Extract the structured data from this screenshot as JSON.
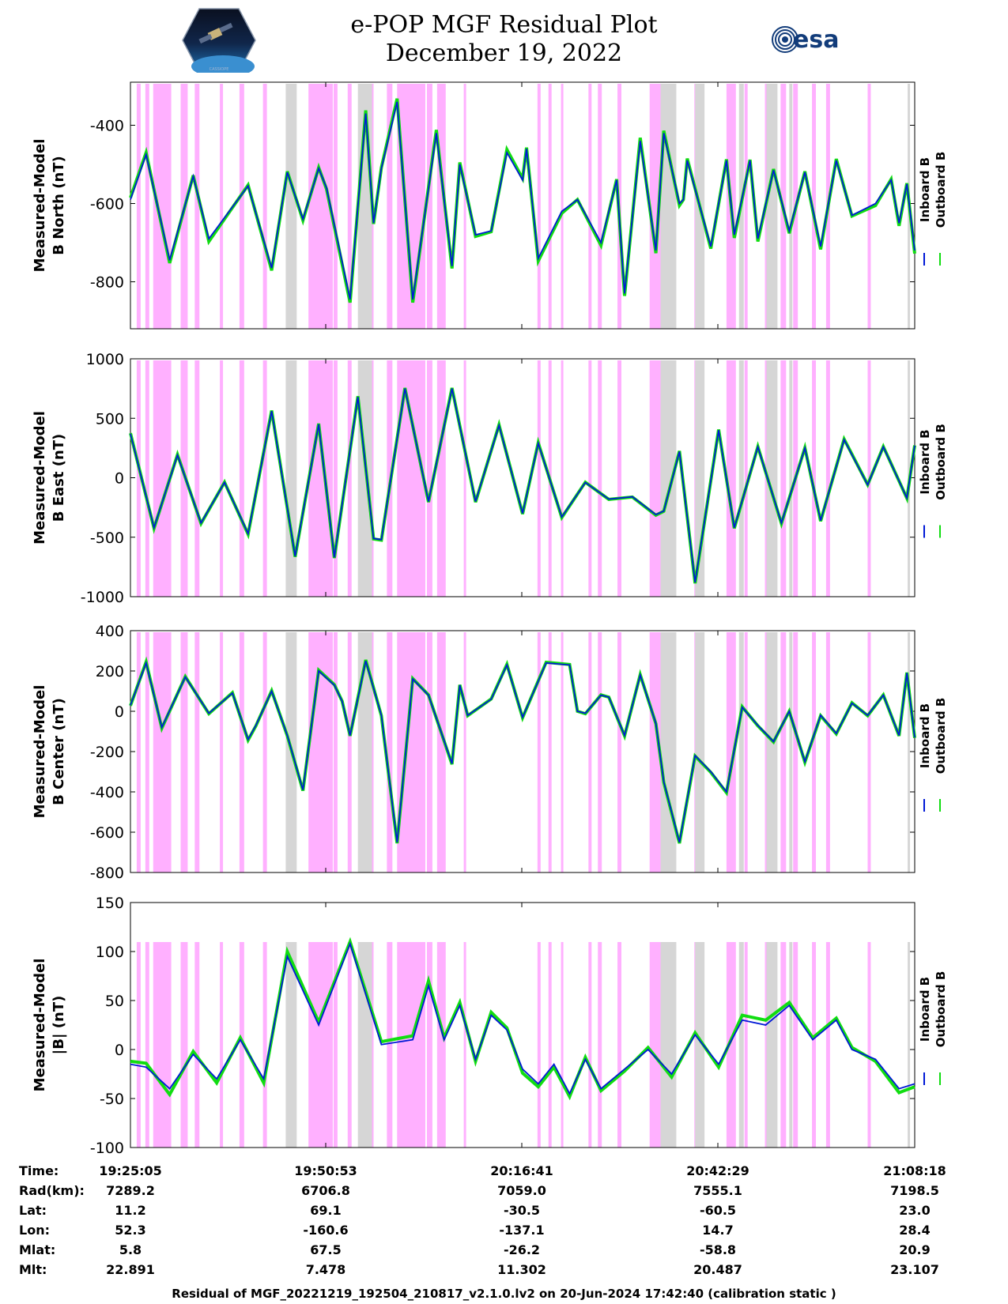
{
  "header": {
    "title_line1": "e-POP MGF Residual Plot",
    "title_line2": "December 19, 2022",
    "left_logo_caption": "CASSIOPE",
    "right_logo_text": "esa"
  },
  "colors": {
    "inboard": "#0018d6",
    "outboard": "#11dd11",
    "pink_band": "#ffb0ff",
    "gray_band": "#d6d6d6"
  },
  "chart_data": [
    {
      "type": "line",
      "ylabel_line1": "Measured-Model",
      "ylabel_line2": "B North (nT)",
      "ylim": [
        -920,
        -290
      ],
      "yticks": [
        -400,
        -600,
        -800
      ],
      "ytick_labels": [
        "-400",
        "-600",
        "-800"
      ],
      "legend": [
        "Inboard B",
        "Outboard B"
      ],
      "series": [
        {
          "name": "Inboard B",
          "x": [
            0,
            2,
            5,
            8,
            10,
            15,
            18,
            20,
            22,
            24,
            25,
            28,
            30,
            31,
            32,
            34,
            36,
            39,
            41,
            42,
            44,
            46,
            48,
            50,
            50.5,
            52,
            55,
            57,
            60,
            62,
            63,
            65,
            67,
            68,
            70,
            70.5,
            71,
            74,
            76,
            77,
            79,
            80,
            82,
            84,
            86,
            88,
            90,
            92,
            95,
            97,
            98,
            99,
            100
          ],
          "values": [
            -590,
            -475,
            -745,
            -530,
            -690,
            -555,
            -765,
            -520,
            -640,
            -510,
            -560,
            -845,
            -370,
            -650,
            -510,
            -340,
            -845,
            -420,
            -760,
            -500,
            -680,
            -670,
            -470,
            -540,
            -460,
            -740,
            -620,
            -590,
            -700,
            -540,
            -830,
            -440,
            -720,
            -420,
            -600,
            -590,
            -490,
            -710,
            -490,
            -680,
            -490,
            -690,
            -515,
            -670,
            -520,
            -710,
            -490,
            -630,
            -600,
            -540,
            -650,
            -550,
            -720
          ]
        },
        {
          "name": "Outboard B",
          "x": [
            0,
            2,
            5,
            8,
            10,
            15,
            18,
            20,
            22,
            24,
            25,
            28,
            30,
            31,
            32,
            34,
            36,
            39,
            41,
            42,
            44,
            46,
            48,
            50,
            50.5,
            52,
            55,
            57,
            60,
            62,
            63,
            65,
            67,
            68,
            70,
            70.5,
            71,
            74,
            76,
            77,
            79,
            80,
            82,
            84,
            86,
            88,
            90,
            92,
            95,
            97,
            98,
            99,
            100
          ],
          "values": [
            -585,
            -470,
            -752,
            -528,
            -697,
            -553,
            -771,
            -518,
            -643,
            -508,
            -563,
            -853,
            -362,
            -652,
            -508,
            -332,
            -853,
            -412,
            -766,
            -495,
            -684,
            -672,
            -462,
            -536,
            -457,
            -747,
            -625,
            -590,
            -707,
            -538,
            -836,
            -432,
            -727,
            -414,
            -605,
            -590,
            -485,
            -715,
            -487,
            -688,
            -488,
            -697,
            -512,
            -676,
            -518,
            -717,
            -486,
            -632,
            -605,
            -538,
            -657,
            -548,
            -728
          ]
        }
      ]
    },
    {
      "type": "line",
      "ylabel_line1": "Measured-Model",
      "ylabel_line2": "B East (nT)",
      "ylim": [
        -1000,
        1000
      ],
      "yticks": [
        1000,
        500,
        0,
        -500,
        -1000
      ],
      "ytick_labels": [
        "1000",
        "500",
        "0",
        "-500",
        "-1000"
      ],
      "legend": [
        "Inboard B",
        "Outboard B"
      ],
      "series": [
        {
          "name": "Inboard B",
          "x": [
            0,
            3,
            6,
            9,
            12,
            15,
            18,
            21,
            24,
            26,
            29,
            31,
            32,
            35,
            38,
            41,
            44,
            47,
            50,
            52,
            55,
            58,
            61,
            64,
            67,
            68,
            70,
            72,
            75,
            77,
            80,
            83,
            86,
            88,
            91,
            94,
            96,
            99,
            100
          ],
          "values": [
            370,
            -420,
            190,
            -380,
            -40,
            -470,
            560,
            -660,
            450,
            -670,
            680,
            -510,
            -520,
            750,
            -200,
            750,
            -200,
            440,
            -300,
            290,
            -330,
            -40,
            -180,
            -160,
            -310,
            -280,
            220,
            -880,
            400,
            -420,
            260,
            -380,
            250,
            -360,
            320,
            -60,
            260,
            -170,
            270
          ]
        },
        {
          "name": "Outboard B",
          "x": [
            0,
            3,
            6,
            9,
            12,
            15,
            18,
            21,
            24,
            26,
            29,
            31,
            32,
            35,
            38,
            41,
            44,
            47,
            50,
            52,
            55,
            58,
            61,
            64,
            67,
            68,
            70,
            72,
            75,
            77,
            80,
            83,
            86,
            88,
            91,
            94,
            96,
            99,
            100
          ],
          "values": [
            375,
            -425,
            195,
            -385,
            -38,
            -475,
            565,
            -665,
            455,
            -675,
            685,
            -515,
            -525,
            755,
            -205,
            755,
            -205,
            445,
            -305,
            295,
            -335,
            -38,
            -182,
            -162,
            -315,
            -282,
            225,
            -888,
            405,
            -425,
            262,
            -385,
            252,
            -365,
            325,
            -58,
            262,
            -172,
            272
          ]
        }
      ]
    },
    {
      "type": "line",
      "ylabel_line1": "Measured-Model",
      "ylabel_line2": "B Center (nT)",
      "ylim": [
        -800,
        400
      ],
      "yticks": [
        400,
        200,
        0,
        -200,
        -400,
        -600,
        -800
      ],
      "ytick_labels": [
        "400",
        "200",
        "0",
        "-200",
        "-400",
        "-600",
        "-800"
      ],
      "legend": [
        "Inboard B",
        "Outboard B"
      ],
      "series": [
        {
          "name": "Inboard B",
          "x": [
            0,
            2,
            4,
            7,
            10,
            13,
            15,
            16,
            18,
            20,
            22,
            24,
            26,
            27,
            28,
            30,
            32,
            34,
            36,
            38,
            41,
            42,
            43,
            46,
            48,
            50,
            53,
            56,
            57,
            58,
            60,
            61,
            63,
            65,
            67,
            68,
            70,
            72,
            74,
            76,
            78,
            80,
            82,
            84,
            86,
            88,
            90,
            92,
            94,
            96,
            98,
            99,
            100
          ],
          "values": [
            30,
            240,
            -80,
            170,
            -10,
            90,
            -140,
            -70,
            100,
            -120,
            -390,
            200,
            130,
            50,
            -120,
            250,
            -20,
            -650,
            160,
            80,
            -260,
            130,
            -20,
            60,
            230,
            -30,
            240,
            230,
            0,
            -10,
            80,
            70,
            -120,
            180,
            -60,
            -350,
            -650,
            -220,
            -300,
            -400,
            20,
            -70,
            -150,
            0,
            -250,
            -20,
            -110,
            40,
            -20,
            80,
            -120,
            190,
            -130
          ]
        },
        {
          "name": "Outboard B",
          "x": [
            0,
            2,
            4,
            7,
            10,
            13,
            15,
            16,
            18,
            20,
            22,
            24,
            26,
            27,
            28,
            30,
            32,
            34,
            36,
            38,
            41,
            42,
            43,
            46,
            48,
            50,
            53,
            56,
            57,
            58,
            60,
            61,
            63,
            65,
            67,
            68,
            70,
            72,
            74,
            76,
            78,
            80,
            82,
            84,
            86,
            88,
            90,
            92,
            94,
            96,
            98,
            99,
            100
          ],
          "values": [
            28,
            245,
            -84,
            172,
            -12,
            92,
            -143,
            -72,
            102,
            -122,
            -394,
            204,
            132,
            50,
            -122,
            255,
            -22,
            -655,
            162,
            81,
            -263,
            131,
            -22,
            61,
            233,
            -32,
            243,
            232,
            0,
            -12,
            81,
            70,
            -122,
            182,
            -62,
            -353,
            -655,
            -222,
            -303,
            -404,
            22,
            -72,
            -152,
            0,
            -253,
            -22,
            -112,
            42,
            -22,
            81,
            -122,
            192,
            -132
          ]
        }
      ]
    },
    {
      "type": "line",
      "ylabel_line1": "Measured-Model",
      "ylabel_line2": "|B| (nT)",
      "ylim": [
        -100,
        150
      ],
      "yticks": [
        150,
        100,
        50,
        0,
        -50,
        -100
      ],
      "ytick_labels": [
        "150",
        "100",
        "50",
        "0",
        "-50",
        "-100"
      ],
      "legend": [
        "Inboard B",
        "Outboard B"
      ],
      "series": [
        {
          "name": "Inboard B",
          "x": [
            0,
            2,
            5,
            8,
            11,
            14,
            17,
            20,
            24,
            28,
            32,
            36,
            38,
            40,
            42,
            44,
            46,
            48,
            50,
            52,
            54,
            56,
            58,
            60,
            63,
            66,
            69,
            72,
            75,
            78,
            81,
            84,
            87,
            90,
            92,
            95,
            98,
            100
          ],
          "values": [
            -15,
            -18,
            -40,
            -5,
            -30,
            10,
            -30,
            95,
            25,
            108,
            5,
            10,
            65,
            10,
            45,
            -10,
            35,
            20,
            -20,
            -35,
            -15,
            -45,
            -10,
            -40,
            -20,
            0,
            -25,
            15,
            -15,
            30,
            25,
            45,
            10,
            30,
            0,
            -10,
            -40,
            -35
          ]
        },
        {
          "name": "Outboard B",
          "x": [
            0,
            2,
            5,
            8,
            11,
            14,
            17,
            20,
            24,
            28,
            32,
            36,
            38,
            40,
            42,
            44,
            46,
            48,
            50,
            52,
            54,
            56,
            58,
            60,
            63,
            66,
            69,
            72,
            75,
            78,
            81,
            84,
            87,
            90,
            92,
            95,
            98,
            100
          ],
          "values": [
            -12,
            -14,
            -46,
            -2,
            -34,
            12,
            -34,
            100,
            28,
            110,
            8,
            14,
            70,
            12,
            48,
            -12,
            38,
            22,
            -24,
            -38,
            -18,
            -48,
            -8,
            -42,
            -22,
            2,
            -28,
            17,
            -18,
            35,
            30,
            48,
            12,
            32,
            2,
            -12,
            -44,
            -38
          ]
        }
      ]
    }
  ],
  "x_axis": {
    "tick_labels": [
      "19:25:05",
      "19:50:53",
      "20:16:41",
      "20:42:29",
      "21:08:18"
    ]
  },
  "footer_rows": [
    {
      "label": "Time:",
      "values": [
        "19:25:05",
        "19:50:53",
        "20:16:41",
        "20:42:29",
        "21:08:18"
      ]
    },
    {
      "label": "Rad(km):",
      "values": [
        "7289.2",
        "6706.8",
        "7059.0",
        "7555.1",
        "7198.5"
      ]
    },
    {
      "label": "Lat:",
      "values": [
        "11.2",
        "69.1",
        "-30.5",
        "-60.5",
        "23.0"
      ]
    },
    {
      "label": "Lon:",
      "values": [
        "52.3",
        "-160.6",
        "-137.1",
        "14.7",
        "28.4"
      ]
    },
    {
      "label": "Mlat:",
      "values": [
        "5.8",
        "67.5",
        "-26.2",
        "-58.8",
        "20.9"
      ]
    },
    {
      "label": "Mlt:",
      "values": [
        "22.891",
        "7.478",
        "11.302",
        "20.487",
        "23.107"
      ]
    }
  ],
  "footer_note": "Residual of MGF_20221219_192504_210817_v2.1.0.lv2 on 20-Jun-2024 17:42:40 (calibration static )"
}
